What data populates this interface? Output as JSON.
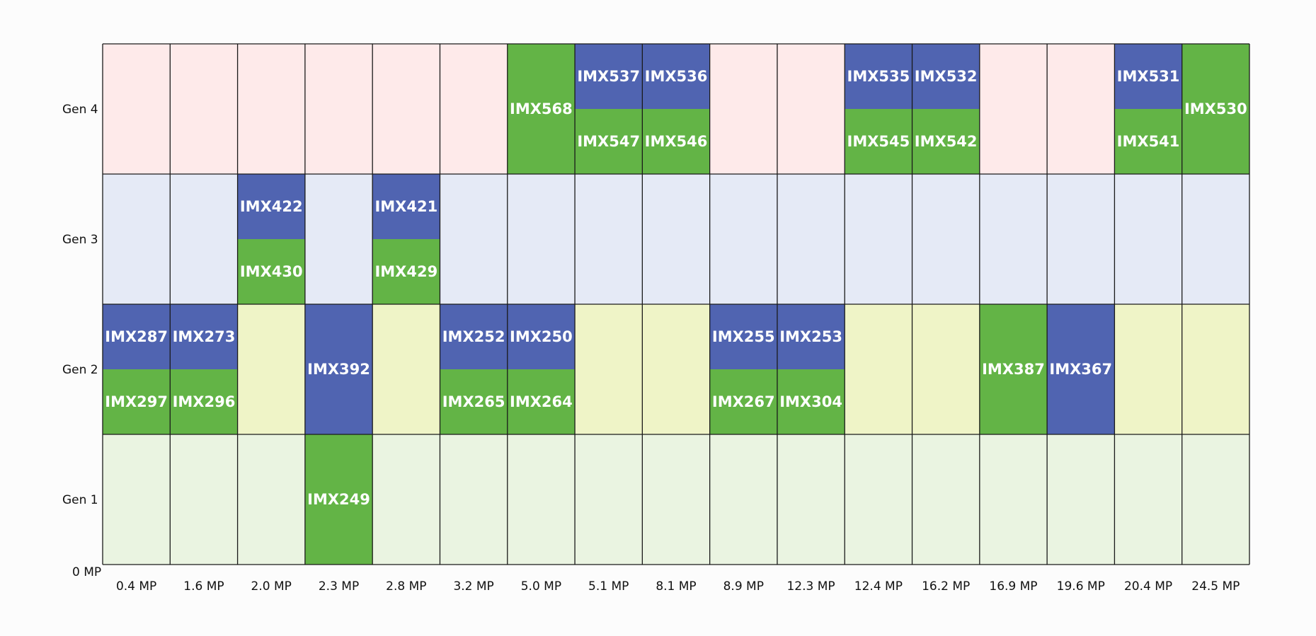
{
  "chart_data": {
    "type": "heatmap",
    "title": "",
    "xlabel": "",
    "ylabel": "",
    "origin_label": "0 MP",
    "categories": [
      "0.4 MP",
      "1.6 MP",
      "2.0 MP",
      "2.3 MP",
      "2.8 MP",
      "3.2 MP",
      "5.0 MP",
      "5.1 MP",
      "8.1 MP",
      "8.9 MP",
      "12.3 MP",
      "12.4 MP",
      "16.2 MP",
      "16.9 MP",
      "19.6 MP",
      "20.4 MP",
      "24.5 MP"
    ],
    "generations": [
      "Gen 1",
      "Gen 2",
      "Gen 3",
      "Gen 4"
    ],
    "colors": {
      "blue": "#5064b1",
      "green": "#63b446",
      "row_Gen 1": "#eaf4e1",
      "row_Gen 2": "#eff4c7",
      "row_Gen 3": "#e5eaf6",
      "row_Gen 4": "#feeaea"
    },
    "sensors": [
      {
        "name": "IMX249",
        "mp": "2.3 MP",
        "gen": "Gen 1",
        "slot": "full",
        "color": "green"
      },
      {
        "name": "IMX287",
        "mp": "0.4 MP",
        "gen": "Gen 2",
        "slot": "top",
        "color": "blue"
      },
      {
        "name": "IMX297",
        "mp": "0.4 MP",
        "gen": "Gen 2",
        "slot": "bottom",
        "color": "green"
      },
      {
        "name": "IMX273",
        "mp": "1.6 MP",
        "gen": "Gen 2",
        "slot": "top",
        "color": "blue"
      },
      {
        "name": "IMX296",
        "mp": "1.6 MP",
        "gen": "Gen 2",
        "slot": "bottom",
        "color": "green"
      },
      {
        "name": "IMX392",
        "mp": "2.3 MP",
        "gen": "Gen 2",
        "slot": "full",
        "color": "blue"
      },
      {
        "name": "IMX252",
        "mp": "3.2 MP",
        "gen": "Gen 2",
        "slot": "top",
        "color": "blue"
      },
      {
        "name": "IMX265",
        "mp": "3.2 MP",
        "gen": "Gen 2",
        "slot": "bottom",
        "color": "green"
      },
      {
        "name": "IMX250",
        "mp": "5.0 MP",
        "gen": "Gen 2",
        "slot": "top",
        "color": "blue"
      },
      {
        "name": "IMX264",
        "mp": "5.0 MP",
        "gen": "Gen 2",
        "slot": "bottom",
        "color": "green"
      },
      {
        "name": "IMX255",
        "mp": "8.9 MP",
        "gen": "Gen 2",
        "slot": "top",
        "color": "blue"
      },
      {
        "name": "IMX267",
        "mp": "8.9 MP",
        "gen": "Gen 2",
        "slot": "bottom",
        "color": "green"
      },
      {
        "name": "IMX253",
        "mp": "12.3 MP",
        "gen": "Gen 2",
        "slot": "top",
        "color": "blue"
      },
      {
        "name": "IMX304",
        "mp": "12.3 MP",
        "gen": "Gen 2",
        "slot": "bottom",
        "color": "green"
      },
      {
        "name": "IMX387",
        "mp": "16.9 MP",
        "gen": "Gen 2",
        "slot": "full",
        "color": "green"
      },
      {
        "name": "IMX367",
        "mp": "19.6 MP",
        "gen": "Gen 2",
        "slot": "full",
        "color": "blue"
      },
      {
        "name": "IMX422",
        "mp": "2.0 MP",
        "gen": "Gen 3",
        "slot": "top",
        "color": "blue"
      },
      {
        "name": "IMX430",
        "mp": "2.0 MP",
        "gen": "Gen 3",
        "slot": "bottom",
        "color": "green"
      },
      {
        "name": "IMX421",
        "mp": "2.8 MP",
        "gen": "Gen 3",
        "slot": "top",
        "color": "blue"
      },
      {
        "name": "IMX429",
        "mp": "2.8 MP",
        "gen": "Gen 3",
        "slot": "bottom",
        "color": "green"
      },
      {
        "name": "IMX568",
        "mp": "5.0 MP",
        "gen": "Gen 4",
        "slot": "full",
        "color": "green"
      },
      {
        "name": "IMX537",
        "mp": "5.1 MP",
        "gen": "Gen 4",
        "slot": "top",
        "color": "blue"
      },
      {
        "name": "IMX547",
        "mp": "5.1 MP",
        "gen": "Gen 4",
        "slot": "bottom",
        "color": "green"
      },
      {
        "name": "IMX536",
        "mp": "8.1 MP",
        "gen": "Gen 4",
        "slot": "top",
        "color": "blue"
      },
      {
        "name": "IMX546",
        "mp": "8.1 MP",
        "gen": "Gen 4",
        "slot": "bottom",
        "color": "green"
      },
      {
        "name": "IMX535",
        "mp": "12.4 MP",
        "gen": "Gen 4",
        "slot": "top",
        "color": "blue"
      },
      {
        "name": "IMX545",
        "mp": "12.4 MP",
        "gen": "Gen 4",
        "slot": "bottom",
        "color": "green"
      },
      {
        "name": "IMX532",
        "mp": "16.2 MP",
        "gen": "Gen 4",
        "slot": "top",
        "color": "blue"
      },
      {
        "name": "IMX542",
        "mp": "16.2 MP",
        "gen": "Gen 4",
        "slot": "bottom",
        "color": "green"
      },
      {
        "name": "IMX531",
        "mp": "20.4 MP",
        "gen": "Gen 4",
        "slot": "top",
        "color": "blue"
      },
      {
        "name": "IMX541",
        "mp": "20.4 MP",
        "gen": "Gen 4",
        "slot": "bottom",
        "color": "green"
      },
      {
        "name": "IMX530",
        "mp": "24.5 MP",
        "gen": "Gen 4",
        "slot": "full",
        "color": "green"
      }
    ]
  }
}
